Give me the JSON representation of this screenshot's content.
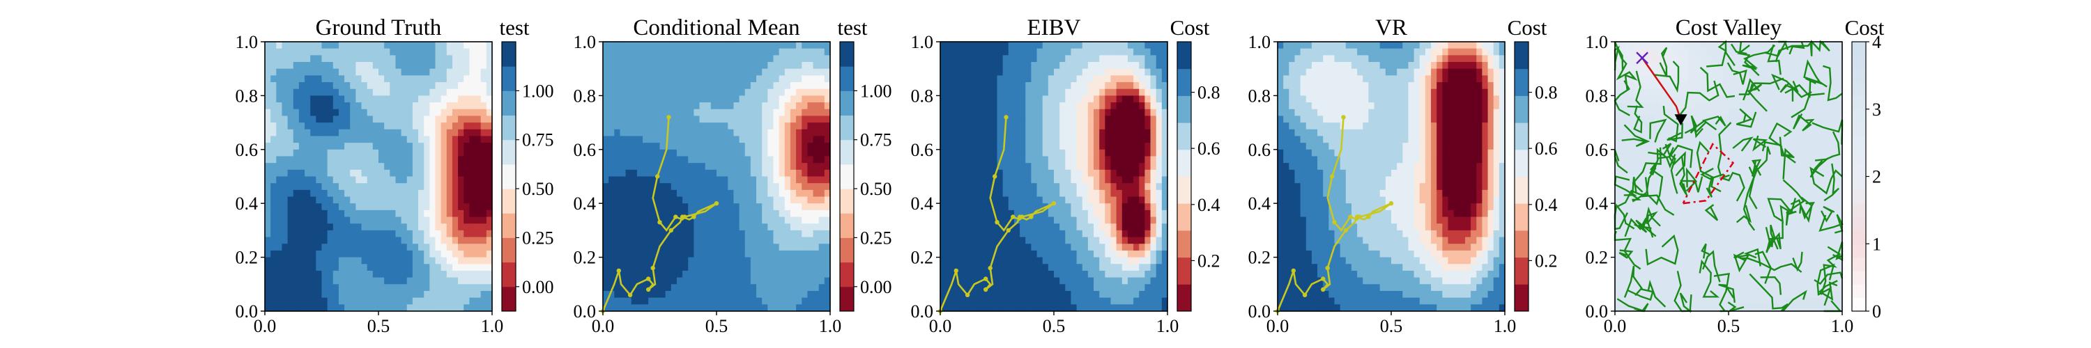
{
  "chart_data": [
    {
      "type": "heatmap",
      "title": "Ground Truth",
      "colorbar_label": "test",
      "colormap": "RdBu",
      "xlim": [
        0,
        1
      ],
      "ylim": [
        0,
        1
      ],
      "xticks": [
        "0.0",
        "0.5",
        "1.0"
      ],
      "yticks": [
        "0.0",
        "0.2",
        "0.4",
        "0.6",
        "0.8",
        "1.0"
      ],
      "cb_range": [
        -0.125,
        1.25
      ],
      "cb_ticks": [
        "0.00",
        "0.25",
        "0.50",
        "0.75",
        "1.00"
      ],
      "cb_tick_values": [
        0,
        0.25,
        0.5,
        0.75,
        1.0
      ],
      "levels": 11,
      "path": []
    },
    {
      "type": "heatmap",
      "title": "Conditional Mean",
      "colorbar_label": "test",
      "colormap": "RdBu",
      "xlim": [
        0,
        1
      ],
      "ylim": [
        0,
        1
      ],
      "xticks": [
        "0.0",
        "0.5",
        "1.0"
      ],
      "yticks": [
        "0.0",
        "0.2",
        "0.4",
        "0.6",
        "0.8",
        "1.0"
      ],
      "cb_range": [
        -0.125,
        1.25
      ],
      "cb_ticks": [
        "0.00",
        "0.25",
        "0.50",
        "0.75",
        "1.00"
      ],
      "cb_tick_values": [
        0,
        0.25,
        0.5,
        0.75,
        1.0
      ],
      "levels": 11,
      "path_color": "#c8c820",
      "path": [
        [
          0,
          0
        ],
        [
          0.05,
          0.1
        ],
        [
          0.07,
          0.15
        ],
        [
          0.08,
          0.1
        ],
        [
          0.12,
          0.06
        ],
        [
          0.15,
          0.1
        ],
        [
          0.2,
          0.12
        ],
        [
          0.22,
          0.1
        ],
        [
          0.2,
          0.08
        ],
        [
          0.23,
          0.1
        ],
        [
          0.22,
          0.16
        ],
        [
          0.25,
          0.24
        ],
        [
          0.3,
          0.3
        ],
        [
          0.34,
          0.33
        ],
        [
          0.35,
          0.35
        ],
        [
          0.38,
          0.34
        ],
        [
          0.4,
          0.35
        ],
        [
          0.42,
          0.37
        ],
        [
          0.5,
          0.4
        ],
        [
          0.45,
          0.37
        ],
        [
          0.36,
          0.35
        ],
        [
          0.35,
          0.34
        ],
        [
          0.32,
          0.35
        ],
        [
          0.28,
          0.3
        ],
        [
          0.25,
          0.33
        ],
        [
          0.22,
          0.42
        ],
        [
          0.24,
          0.5
        ],
        [
          0.28,
          0.6
        ],
        [
          0.29,
          0.72
        ]
      ]
    },
    {
      "type": "heatmap",
      "title": "EIBV",
      "colorbar_label": "Cost",
      "colormap": "RdBu",
      "xlim": [
        0,
        1
      ],
      "ylim": [
        0,
        1
      ],
      "xticks": [
        "0.0",
        "0.5",
        "1.0"
      ],
      "yticks": [
        "0.0",
        "0.2",
        "0.4",
        "0.6",
        "0.8",
        "1.0"
      ],
      "cb_range": [
        0.02,
        0.98
      ],
      "cb_ticks": [
        "0.2",
        "0.4",
        "0.6",
        "0.8"
      ],
      "cb_tick_values": [
        0.2,
        0.4,
        0.6,
        0.8
      ],
      "levels": 10,
      "path_color": "#c8c820",
      "path": [
        [
          0,
          0
        ],
        [
          0.05,
          0.1
        ],
        [
          0.07,
          0.15
        ],
        [
          0.08,
          0.1
        ],
        [
          0.12,
          0.06
        ],
        [
          0.15,
          0.1
        ],
        [
          0.2,
          0.12
        ],
        [
          0.22,
          0.1
        ],
        [
          0.2,
          0.08
        ],
        [
          0.23,
          0.1
        ],
        [
          0.22,
          0.16
        ],
        [
          0.25,
          0.24
        ],
        [
          0.3,
          0.3
        ],
        [
          0.34,
          0.33
        ],
        [
          0.35,
          0.35
        ],
        [
          0.38,
          0.34
        ],
        [
          0.4,
          0.35
        ],
        [
          0.42,
          0.37
        ],
        [
          0.5,
          0.4
        ],
        [
          0.45,
          0.37
        ],
        [
          0.36,
          0.35
        ],
        [
          0.35,
          0.34
        ],
        [
          0.32,
          0.35
        ],
        [
          0.28,
          0.3
        ],
        [
          0.25,
          0.33
        ],
        [
          0.22,
          0.42
        ],
        [
          0.24,
          0.5
        ],
        [
          0.28,
          0.6
        ],
        [
          0.29,
          0.72
        ]
      ]
    },
    {
      "type": "heatmap",
      "title": "VR",
      "colorbar_label": "Cost",
      "colormap": "RdBu",
      "xlim": [
        0,
        1
      ],
      "ylim": [
        0,
        1
      ],
      "xticks": [
        "0.0",
        "0.5",
        "1.0"
      ],
      "yticks": [
        "0.0",
        "0.2",
        "0.4",
        "0.6",
        "0.8",
        "1.0"
      ],
      "cb_range": [
        0.02,
        0.98
      ],
      "cb_ticks": [
        "0.2",
        "0.4",
        "0.6",
        "0.8"
      ],
      "cb_tick_values": [
        0.2,
        0.4,
        0.6,
        0.8
      ],
      "levels": 10,
      "path_color": "#c8c820",
      "path": [
        [
          0,
          0
        ],
        [
          0.05,
          0.1
        ],
        [
          0.07,
          0.15
        ],
        [
          0.08,
          0.1
        ],
        [
          0.12,
          0.06
        ],
        [
          0.15,
          0.1
        ],
        [
          0.2,
          0.12
        ],
        [
          0.22,
          0.1
        ],
        [
          0.2,
          0.08
        ],
        [
          0.23,
          0.1
        ],
        [
          0.22,
          0.16
        ],
        [
          0.25,
          0.24
        ],
        [
          0.3,
          0.3
        ],
        [
          0.34,
          0.33
        ],
        [
          0.35,
          0.35
        ],
        [
          0.38,
          0.34
        ],
        [
          0.4,
          0.35
        ],
        [
          0.42,
          0.37
        ],
        [
          0.5,
          0.4
        ],
        [
          0.45,
          0.37
        ],
        [
          0.36,
          0.35
        ],
        [
          0.35,
          0.34
        ],
        [
          0.32,
          0.35
        ],
        [
          0.28,
          0.3
        ],
        [
          0.25,
          0.33
        ],
        [
          0.22,
          0.42
        ],
        [
          0.24,
          0.5
        ],
        [
          0.28,
          0.6
        ],
        [
          0.29,
          0.72
        ]
      ]
    },
    {
      "type": "heatmap",
      "title": "Cost Valley",
      "colorbar_label": "Cost",
      "colormap": "Reds",
      "xlim": [
        0,
        1
      ],
      "ylim": [
        0,
        1
      ],
      "xticks": [
        "0.0",
        "0.5",
        "1.0"
      ],
      "yticks": [
        "0.0",
        "0.2",
        "0.4",
        "0.6",
        "0.8",
        "1.0"
      ],
      "cb_range": [
        0,
        4
      ],
      "cb_ticks": [
        "0",
        "1",
        "2",
        "3",
        "4"
      ],
      "cb_tick_values": [
        0,
        1,
        2,
        3,
        4
      ],
      "levels": 20,
      "tree_color": "#1a8a1a",
      "tree_note": "random RRT-style exploration branches over the whole domain",
      "polygon": [
        [
          0.3,
          0.4
        ],
        [
          0.4,
          0.41
        ],
        [
          0.52,
          0.55
        ],
        [
          0.43,
          0.62
        ]
      ],
      "polygon_color": "#e0001a",
      "start_marker": [
        0.12,
        0.94
      ],
      "start_marker_color": "#6020c0",
      "target_marker": [
        0.29,
        0.71
      ],
      "path": [
        [
          0.12,
          0.94
        ],
        [
          0.17,
          0.88
        ],
        [
          0.22,
          0.82
        ],
        [
          0.27,
          0.76
        ],
        [
          0.29,
          0.71
        ]
      ]
    }
  ]
}
